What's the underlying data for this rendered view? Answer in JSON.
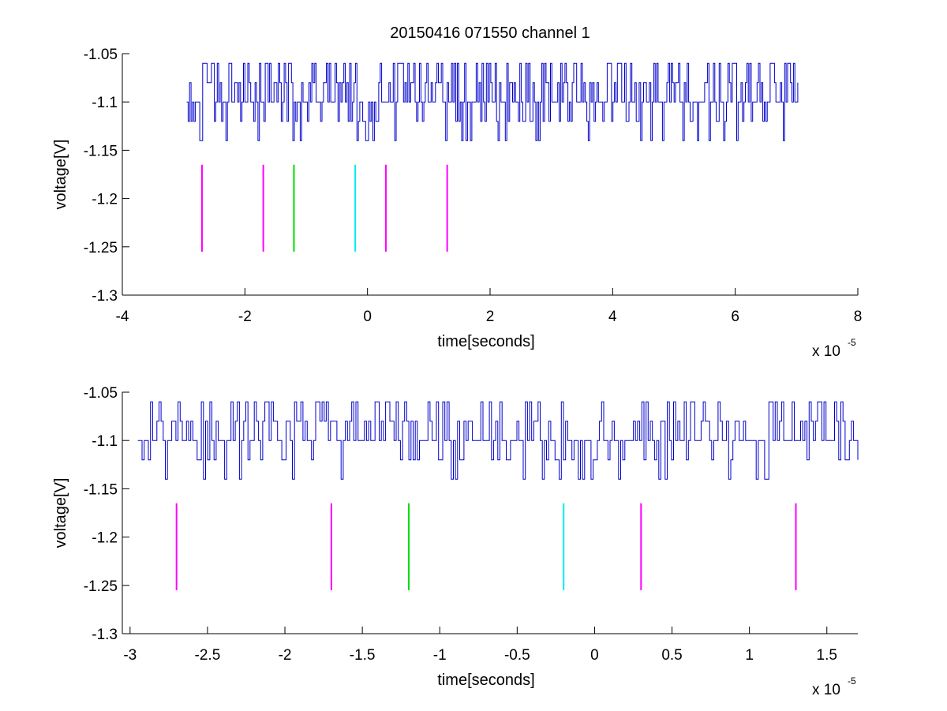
{
  "chart_data": [
    {
      "type": "line",
      "title": "20150416 071550 channel 1",
      "xlabel": "time[seconds]",
      "ylabel": "voltage[V]",
      "x_multiplier_label": "x 10",
      "x_multiplier_exponent": "-5",
      "xlim": [
        -4,
        8
      ],
      "ylim": [
        -1.3,
        -1.05
      ],
      "xticks": [
        -4,
        -2,
        0,
        2,
        4,
        6,
        8
      ],
      "xtick_labels": [
        "-4",
        "-2",
        "0",
        "2",
        "4",
        "6",
        "8"
      ],
      "yticks": [
        -1.3,
        -1.25,
        -1.2,
        -1.15,
        -1.1,
        -1.05
      ],
      "ytick_labels": [
        "-1.3",
        "-1.25",
        "-1.2",
        "-1.15",
        "-1.1",
        "-1.05"
      ],
      "grid": false,
      "series": [
        {
          "color": "#0000cc",
          "x_range": [
            -2.95,
            7.02
          ],
          "levels": [
            -1.06,
            -1.08,
            -1.1,
            -1.12,
            -1.14
          ],
          "baseline": -1.1,
          "description": "noisy digitized voltage trace"
        }
      ],
      "markers": [
        {
          "x": -2.7,
          "y_range": [
            -1.255,
            -1.165
          ],
          "color": "#ff00ff"
        },
        {
          "x": -1.7,
          "y_range": [
            -1.255,
            -1.165
          ],
          "color": "#ff00ff"
        },
        {
          "x": -1.2,
          "y_range": [
            -1.255,
            -1.165
          ],
          "color": "#00dd00"
        },
        {
          "x": -0.2,
          "y_range": [
            -1.255,
            -1.165
          ],
          "color": "#00eeee"
        },
        {
          "x": 0.3,
          "y_range": [
            -1.255,
            -1.165
          ],
          "color": "#ff00ff"
        },
        {
          "x": 1.3,
          "y_range": [
            -1.255,
            -1.165
          ],
          "color": "#ff00ff"
        }
      ]
    },
    {
      "type": "line",
      "title": "",
      "xlabel": "time[seconds]",
      "ylabel": "voltage[V]",
      "x_multiplier_label": "x 10",
      "x_multiplier_exponent": "-5",
      "xlim": [
        -3.05,
        1.7
      ],
      "ylim": [
        -1.3,
        -1.05
      ],
      "xticks": [
        -3,
        -2.5,
        -2,
        -1.5,
        -1,
        -0.5,
        0,
        0.5,
        1,
        1.5
      ],
      "xtick_labels": [
        "-3",
        "-2.5",
        "-2",
        "-1.5",
        "-1",
        "-0.5",
        "0",
        "0.5",
        "1",
        "1.5"
      ],
      "yticks": [
        -1.3,
        -1.25,
        -1.2,
        -1.15,
        -1.1,
        -1.05
      ],
      "ytick_labels": [
        "-1.3",
        "-1.25",
        "-1.2",
        "-1.15",
        "-1.1",
        "-1.05"
      ],
      "grid": false,
      "series": [
        {
          "color": "#0000cc",
          "x_range": [
            -2.95,
            1.7
          ],
          "levels": [
            -1.06,
            -1.08,
            -1.1,
            -1.12,
            -1.14
          ],
          "baseline": -1.1,
          "description": "noisy digitized voltage trace (zoomed)"
        }
      ],
      "markers": [
        {
          "x": -2.7,
          "y_range": [
            -1.255,
            -1.165
          ],
          "color": "#ff00ff"
        },
        {
          "x": -1.7,
          "y_range": [
            -1.255,
            -1.165
          ],
          "color": "#ff00ff"
        },
        {
          "x": -1.2,
          "y_range": [
            -1.255,
            -1.165
          ],
          "color": "#00dd00"
        },
        {
          "x": -0.2,
          "y_range": [
            -1.255,
            -1.165
          ],
          "color": "#00eeee"
        },
        {
          "x": 0.3,
          "y_range": [
            -1.255,
            -1.165
          ],
          "color": "#ff00ff"
        },
        {
          "x": 1.3,
          "y_range": [
            -1.255,
            -1.165
          ],
          "color": "#ff00ff"
        }
      ]
    }
  ]
}
